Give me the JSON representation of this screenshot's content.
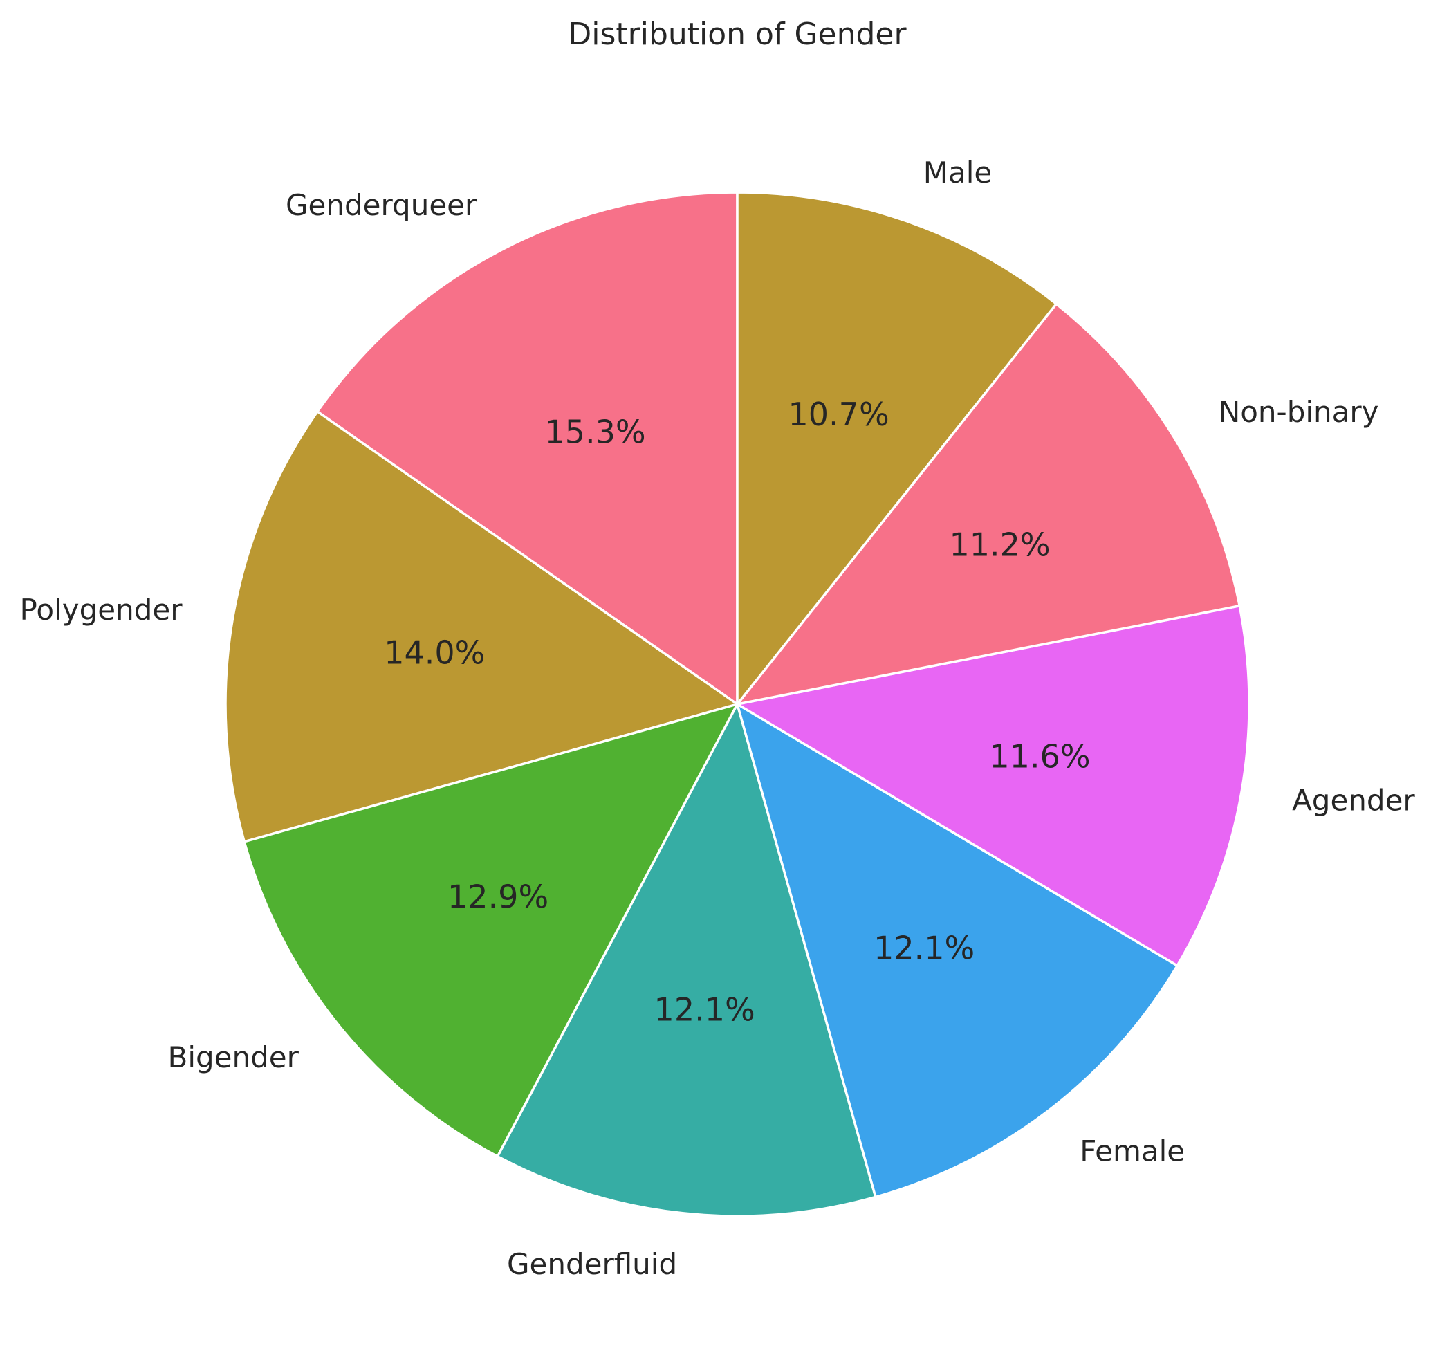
{
  "chart_data": {
    "type": "pie",
    "title": "Distribution of Gender",
    "start_angle_deg": 90,
    "direction": "counterclockwise",
    "slices": [
      {
        "label": "Genderqueer",
        "value": 15.3,
        "pct_label": "15.3%",
        "color": "#f77189"
      },
      {
        "label": "Polygender",
        "value": 14.0,
        "pct_label": "14.0%",
        "color": "#bb9832"
      },
      {
        "label": "Bigender",
        "value": 12.9,
        "pct_label": "12.9%",
        "color": "#50b131"
      },
      {
        "label": "Genderfluid",
        "value": 12.1,
        "pct_label": "12.1%",
        "color": "#36ada4"
      },
      {
        "label": "Female",
        "value": 12.1,
        "pct_label": "12.1%",
        "color": "#3ba3ec"
      },
      {
        "label": "Agender",
        "value": 11.6,
        "pct_label": "11.6%",
        "color": "#e866f4"
      },
      {
        "label": "Non-binary",
        "value": 11.2,
        "pct_label": "11.2%",
        "color": "#f77189"
      },
      {
        "label": "Male",
        "value": 10.7,
        "pct_label": "10.7%",
        "color": "#bb9832"
      }
    ]
  }
}
